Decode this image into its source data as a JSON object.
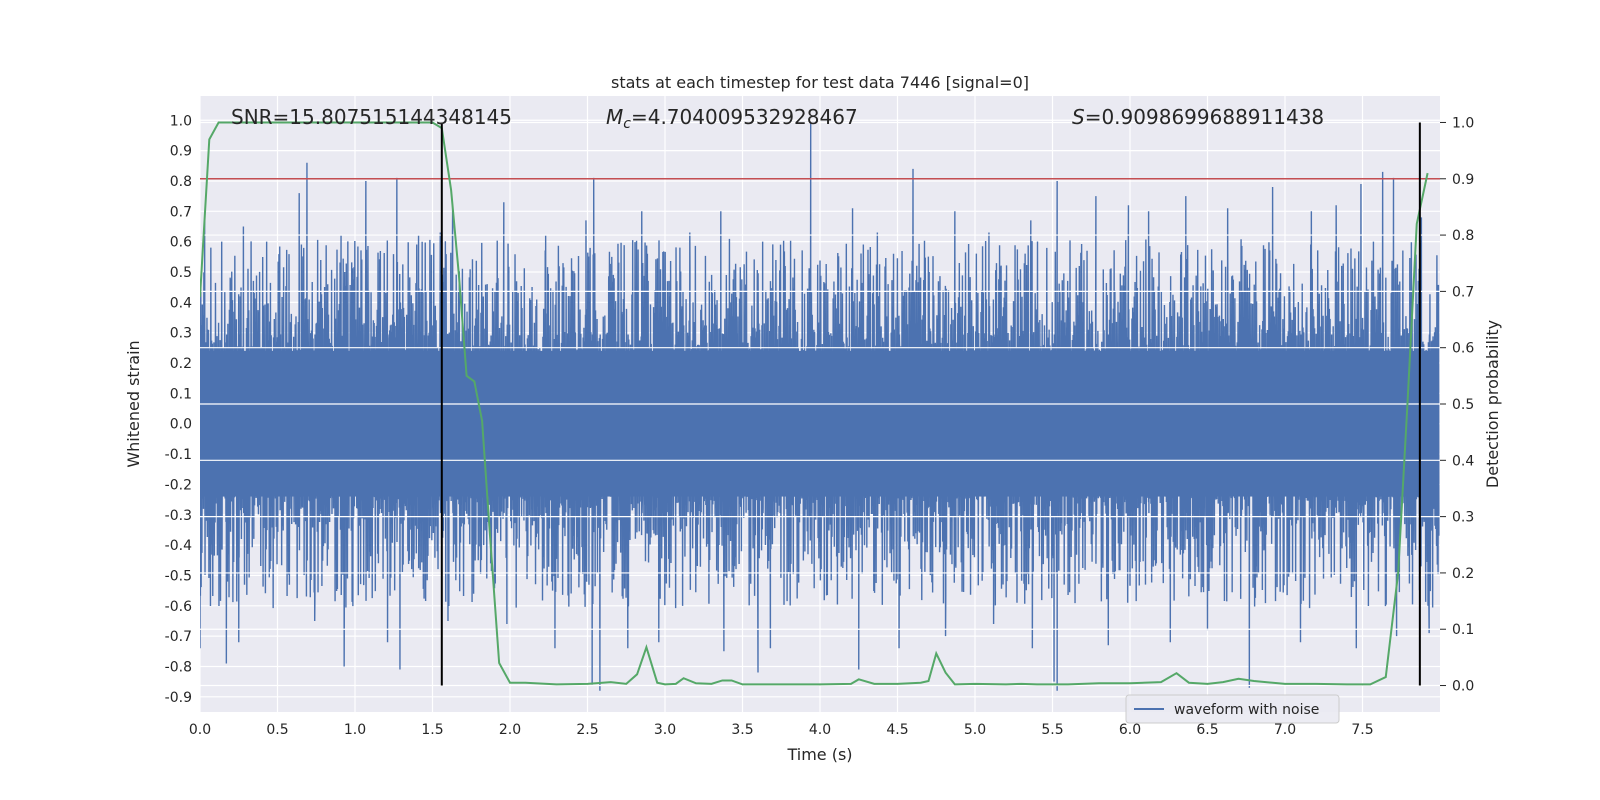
{
  "chart_data": {
    "type": "line",
    "title": "stats at each timestep for test data 7446 [signal=0]",
    "xlabel": "Time (s)",
    "ylabel": "Whitened strain",
    "y2label": "Detection probability",
    "xlim": [
      0.0,
      8.0
    ],
    "ylim": [
      -0.95,
      1.08
    ],
    "y2lim": [
      -0.047,
      1.047
    ],
    "xticks": [
      "0.0",
      "0.5",
      "1.0",
      "1.5",
      "2.0",
      "2.5",
      "3.0",
      "3.5",
      "4.0",
      "4.5",
      "5.0",
      "5.5",
      "6.0",
      "6.5",
      "7.0",
      "7.5"
    ],
    "yticks": [
      "1.0",
      "0.9",
      "0.8",
      "0.7",
      "0.6",
      "0.5",
      "0.4",
      "0.3",
      "0.2",
      "0.1",
      "0.0",
      "-0.1",
      "-0.2",
      "-0.3",
      "-0.4",
      "-0.5",
      "-0.6",
      "-0.7",
      "-0.8",
      "-0.9"
    ],
    "y2ticks": [
      "1.0",
      "0.9",
      "0.8",
      "0.7",
      "0.6",
      "0.5",
      "0.4",
      "0.3",
      "0.2",
      "0.1",
      "0.0"
    ],
    "grid": true,
    "legend": {
      "position": "lower-right",
      "entries": [
        "waveform with noise"
      ]
    },
    "annotations": {
      "snr": "SNR=15.807515144348145",
      "mc_prefix": "M",
      "mc_sub": "c",
      "mc_value": "=4.704009532928467",
      "s_prefix": "S",
      "s_value": "=0.9098699688911438"
    },
    "threshold": {
      "axis": "y2",
      "value": 0.9,
      "color": "#c44e52"
    },
    "vlines": [
      1.56,
      7.87
    ],
    "waveform": {
      "name": "waveform with noise",
      "color": "#4c72b0",
      "envelope_upper": 0.42,
      "envelope_lower": -0.42,
      "peaks": [
        {
          "x": 0.03,
          "y": 0.67
        },
        {
          "x": 0.14,
          "y": 0.6
        },
        {
          "x": 0.28,
          "y": 0.65
        },
        {
          "x": 0.43,
          "y": 0.6
        },
        {
          "x": 0.64,
          "y": 0.76
        },
        {
          "x": 0.69,
          "y": 0.86
        },
        {
          "x": 0.91,
          "y": 0.62
        },
        {
          "x": 1.07,
          "y": 0.8
        },
        {
          "x": 1.27,
          "y": 0.81
        },
        {
          "x": 1.41,
          "y": 0.62
        },
        {
          "x": 1.55,
          "y": 0.63
        },
        {
          "x": 1.63,
          "y": 0.72
        },
        {
          "x": 1.96,
          "y": 0.73
        },
        {
          "x": 2.23,
          "y": 0.62
        },
        {
          "x": 2.49,
          "y": 0.67
        },
        {
          "x": 2.54,
          "y": 0.81
        },
        {
          "x": 2.85,
          "y": 0.7
        },
        {
          "x": 3.16,
          "y": 0.63
        },
        {
          "x": 3.36,
          "y": 0.7
        },
        {
          "x": 3.63,
          "y": 0.6
        },
        {
          "x": 3.94,
          "y": 0.99
        },
        {
          "x": 4.21,
          "y": 0.71
        },
        {
          "x": 4.37,
          "y": 0.63
        },
        {
          "x": 4.6,
          "y": 0.84
        },
        {
          "x": 4.87,
          "y": 0.7
        },
        {
          "x": 5.09,
          "y": 0.63
        },
        {
          "x": 5.36,
          "y": 0.67
        },
        {
          "x": 5.53,
          "y": 0.8
        },
        {
          "x": 5.78,
          "y": 0.75
        },
        {
          "x": 5.99,
          "y": 0.72
        },
        {
          "x": 6.12,
          "y": 0.7
        },
        {
          "x": 6.36,
          "y": 0.75
        },
        {
          "x": 6.63,
          "y": 0.71
        },
        {
          "x": 6.92,
          "y": 0.78
        },
        {
          "x": 7.17,
          "y": 0.7
        },
        {
          "x": 7.33,
          "y": 0.72
        },
        {
          "x": 7.49,
          "y": 0.79
        },
        {
          "x": 7.63,
          "y": 0.83
        },
        {
          "x": 7.7,
          "y": 0.81
        },
        {
          "x": 7.88,
          "y": 0.68
        }
      ],
      "troughs": [
        {
          "x": 0.0,
          "y": -0.74
        },
        {
          "x": 0.17,
          "y": -0.79
        },
        {
          "x": 0.25,
          "y": -0.72
        },
        {
          "x": 0.74,
          "y": -0.65
        },
        {
          "x": 0.93,
          "y": -0.8
        },
        {
          "x": 1.21,
          "y": -0.72
        },
        {
          "x": 1.29,
          "y": -0.81
        },
        {
          "x": 1.6,
          "y": -0.65
        },
        {
          "x": 1.98,
          "y": -0.66
        },
        {
          "x": 2.29,
          "y": -0.74
        },
        {
          "x": 2.53,
          "y": -0.86
        },
        {
          "x": 2.58,
          "y": -0.88
        },
        {
          "x": 2.76,
          "y": -0.74
        },
        {
          "x": 2.96,
          "y": -0.72
        },
        {
          "x": 3.38,
          "y": -0.75
        },
        {
          "x": 3.6,
          "y": -0.82
        },
        {
          "x": 3.68,
          "y": -0.74
        },
        {
          "x": 4.25,
          "y": -0.81
        },
        {
          "x": 4.51,
          "y": -0.74
        },
        {
          "x": 4.81,
          "y": -0.7
        },
        {
          "x": 5.12,
          "y": -0.66
        },
        {
          "x": 5.37,
          "y": -0.74
        },
        {
          "x": 5.51,
          "y": -0.85
        },
        {
          "x": 5.53,
          "y": -0.88
        },
        {
          "x": 5.86,
          "y": -0.73
        },
        {
          "x": 6.26,
          "y": -0.72
        },
        {
          "x": 6.5,
          "y": -0.68
        },
        {
          "x": 6.77,
          "y": -0.87
        },
        {
          "x": 7.1,
          "y": -0.72
        },
        {
          "x": 7.46,
          "y": -0.74
        },
        {
          "x": 7.72,
          "y": -0.7
        },
        {
          "x": 7.93,
          "y": -0.69
        }
      ]
    },
    "probability": {
      "color": "#55a868",
      "x": [
        0.0,
        0.06,
        0.12,
        0.2,
        0.4,
        0.7,
        1.0,
        1.3,
        1.5,
        1.56,
        1.62,
        1.67,
        1.72,
        1.77,
        1.82,
        1.87,
        1.93,
        2.0,
        2.1,
        2.3,
        2.5,
        2.65,
        2.75,
        2.82,
        2.88,
        2.95,
        3.0,
        3.07,
        3.12,
        3.2,
        3.3,
        3.37,
        3.43,
        3.5,
        3.7,
        4.0,
        4.2,
        4.25,
        4.35,
        4.5,
        4.65,
        4.7,
        4.75,
        4.81,
        4.87,
        5.0,
        5.2,
        5.3,
        5.4,
        5.6,
        5.8,
        6.0,
        6.2,
        6.3,
        6.38,
        6.5,
        6.6,
        6.7,
        6.8,
        7.0,
        7.2,
        7.4,
        7.55,
        7.65,
        7.73,
        7.79,
        7.85,
        7.92
      ],
      "y": [
        0.69,
        0.97,
        1.0,
        1.0,
        1.0,
        1.0,
        1.0,
        1.0,
        1.0,
        0.99,
        0.88,
        0.73,
        0.55,
        0.54,
        0.47,
        0.27,
        0.04,
        0.005,
        0.005,
        0.002,
        0.003,
        0.006,
        0.003,
        0.02,
        0.068,
        0.005,
        0.002,
        0.003,
        0.013,
        0.004,
        0.003,
        0.009,
        0.009,
        0.002,
        0.002,
        0.002,
        0.003,
        0.011,
        0.003,
        0.003,
        0.005,
        0.008,
        0.057,
        0.023,
        0.002,
        0.003,
        0.002,
        0.003,
        0.002,
        0.002,
        0.004,
        0.004,
        0.006,
        0.022,
        0.005,
        0.003,
        0.006,
        0.012,
        0.008,
        0.003,
        0.003,
        0.002,
        0.002,
        0.015,
        0.2,
        0.5,
        0.82,
        0.91
      ]
    }
  }
}
